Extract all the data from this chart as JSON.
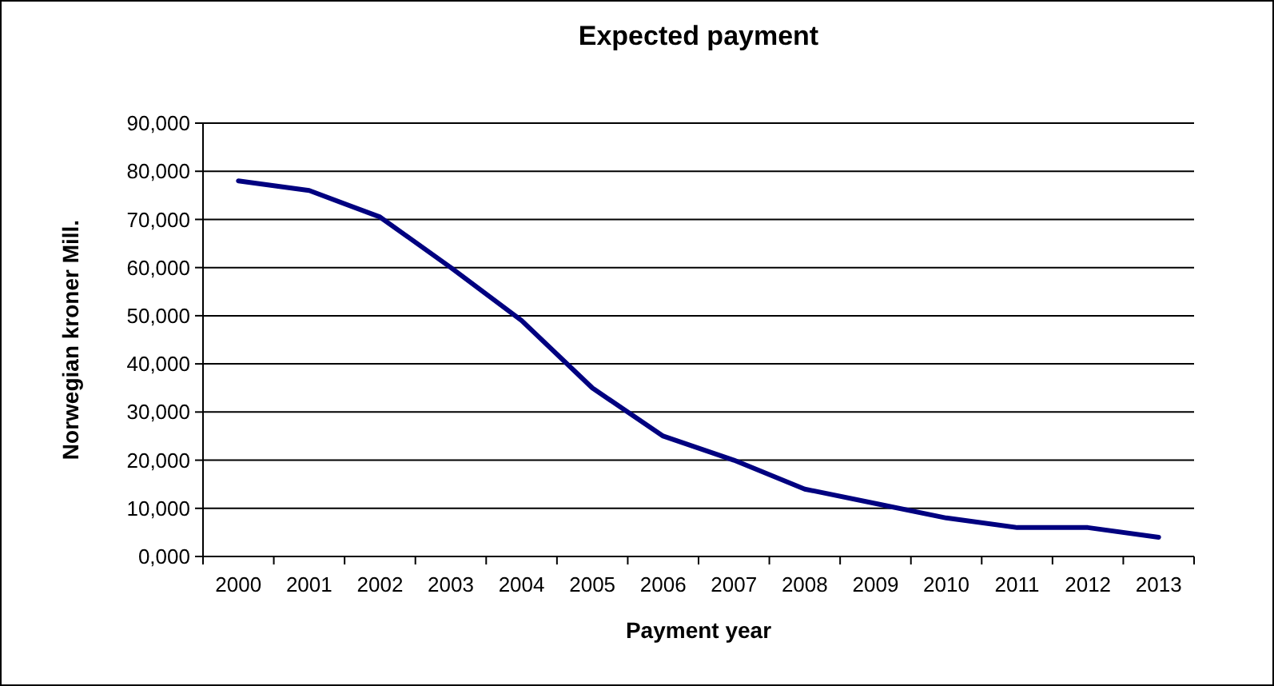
{
  "chart_data": {
    "type": "line",
    "title": "Expected payment",
    "xlabel": "Payment year",
    "ylabel": "Norwegian kroner Mill.",
    "categories": [
      "2000",
      "2001",
      "2002",
      "2003",
      "2004",
      "2005",
      "2006",
      "2007",
      "2008",
      "2009",
      "2010",
      "2011",
      "2012",
      "2013"
    ],
    "series": [
      {
        "color": "#000080",
        "values": [
          78000,
          76000,
          70500,
          60000,
          49000,
          35000,
          25000,
          20000,
          14000,
          11000,
          8000,
          6000,
          6000,
          4000
        ]
      }
    ],
    "ylim": [
      0,
      90000
    ],
    "yticks": [
      {
        "value": 0,
        "label": "0,000"
      },
      {
        "value": 10000,
        "label": "10,000"
      },
      {
        "value": 20000,
        "label": "20,000"
      },
      {
        "value": 30000,
        "label": "30,000"
      },
      {
        "value": 40000,
        "label": "40,000"
      },
      {
        "value": 50000,
        "label": "50,000"
      },
      {
        "value": 60000,
        "label": "60,000"
      },
      {
        "value": 70000,
        "label": "70,000"
      },
      {
        "value": 80000,
        "label": "80,000"
      },
      {
        "value": 90000,
        "label": "90,000"
      }
    ],
    "grid": "y",
    "marker": "none",
    "line_style": "solid"
  }
}
